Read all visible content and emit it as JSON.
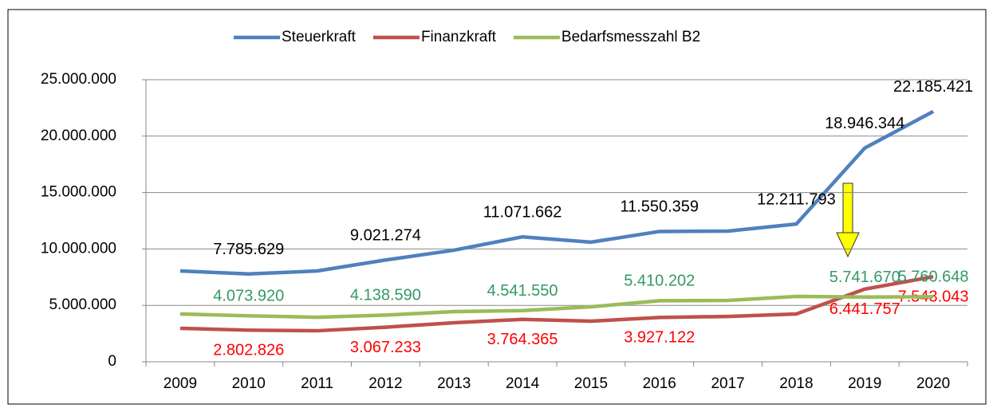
{
  "chart_data": {
    "type": "line",
    "categories": [
      "2009",
      "2010",
      "2011",
      "2012",
      "2013",
      "2014",
      "2015",
      "2016",
      "2017",
      "2018",
      "2019",
      "2020"
    ],
    "series": [
      {
        "name": "Steuerkraft",
        "color": "#4f81bd",
        "label_color": "#000000",
        "values": [
          8050000,
          7785629,
          8050000,
          9021274,
          9890000,
          11071662,
          10600000,
          11550359,
          11580000,
          12211793,
          18946344,
          22185421
        ],
        "value_labels": [
          null,
          "7.785.629",
          null,
          "9.021.274",
          null,
          "11.071.662",
          null,
          "11.550.359",
          null,
          "12.211.793",
          "18.946.344",
          "22.185.421"
        ]
      },
      {
        "name": "Finanzkraft",
        "color": "#c0504d",
        "label_color": "#ff0000",
        "values": [
          2970000,
          2802826,
          2750000,
          3067233,
          3460000,
          3764365,
          3600000,
          3927122,
          4020000,
          4240000,
          6441757,
          7543043
        ],
        "value_labels": [
          null,
          "2.802.826",
          null,
          "3.067.233",
          null,
          "3.764.365",
          null,
          "3.927.122",
          null,
          null,
          "6.441.757",
          "7.543.043"
        ]
      },
      {
        "name": "Bedarfsmesszahl B2",
        "color": "#9bbb59",
        "label_color": "#339966",
        "values": [
          4240000,
          4073920,
          3950000,
          4138590,
          4450000,
          4541550,
          4870000,
          5410202,
          5440000,
          5790000,
          5741670,
          5760648
        ],
        "value_labels": [
          null,
          "4.073.920",
          null,
          "4.138.590",
          null,
          "4.541.550",
          null,
          "5.410.202",
          null,
          null,
          "5.741.670",
          "5.760.648"
        ]
      }
    ],
    "ylim": [
      0,
      25000000
    ],
    "yticks": [
      0,
      {
        "value": 5000000,
        "label": "5.000.000"
      },
      {
        "value": 10000000,
        "label": "10.000.000"
      },
      {
        "value": 15000000,
        "label": "15.000.000"
      },
      {
        "value": 20000000,
        "label": "20.000.000"
      },
      {
        "value": 25000000,
        "label": "25.000.000"
      }
    ],
    "grid": true,
    "legend": "top"
  }
}
